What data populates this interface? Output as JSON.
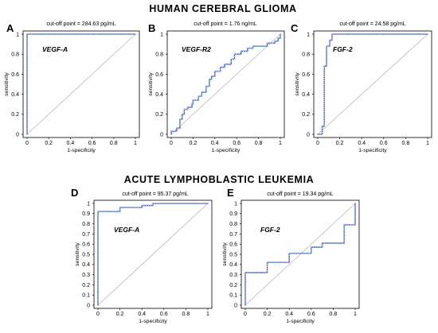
{
  "sections": {
    "top": "HUMAN CEREBRAL GLIOMA",
    "bottom": "ACUTE LYMPHOBLASTIC LEUKEMIA"
  },
  "chart_data": [
    {
      "id": "A",
      "panel_label": "A",
      "type": "line",
      "title": "cut-off point = 284.63 pg/mL",
      "series_label": "VEGF-A",
      "xlabel": "1-specificity",
      "ylabel": "sensitivity",
      "xlim": [
        0,
        1
      ],
      "ylim": [
        0,
        1
      ],
      "x_ticks": [
        "0",
        "0.2",
        "0.4",
        "0.6",
        "0.8",
        "1"
      ],
      "y_ticks": [
        "0",
        "0.2",
        "0.4",
        "0.6",
        "0.8",
        "1"
      ],
      "diagonal": true,
      "points": [
        [
          0,
          0
        ],
        [
          0,
          1
        ],
        [
          1,
          1
        ]
      ]
    },
    {
      "id": "B",
      "panel_label": "B",
      "type": "line",
      "title": "cut-off point = 1.76 ng/mL",
      "series_label": "VEGF-R2",
      "xlabel": "1-specificity",
      "ylabel": "sensitivity",
      "xlim": [
        0,
        1
      ],
      "ylim": [
        0,
        1
      ],
      "x_ticks": [
        "0",
        "0.2",
        "0.4",
        "0.6",
        "0.8",
        "1"
      ],
      "y_ticks": [
        "0",
        "0.2",
        "0.4",
        "0.6",
        "0.8",
        "1"
      ],
      "diagonal": true,
      "points": [
        [
          0,
          0
        ],
        [
          0,
          0.03
        ],
        [
          0.05,
          0.03
        ],
        [
          0.05,
          0.06
        ],
        [
          0.08,
          0.06
        ],
        [
          0.08,
          0.15
        ],
        [
          0.1,
          0.15
        ],
        [
          0.1,
          0.2
        ],
        [
          0.12,
          0.2
        ],
        [
          0.12,
          0.25
        ],
        [
          0.15,
          0.25
        ],
        [
          0.15,
          0.27
        ],
        [
          0.19,
          0.27
        ],
        [
          0.19,
          0.3
        ],
        [
          0.2,
          0.3
        ],
        [
          0.2,
          0.34
        ],
        [
          0.25,
          0.34
        ],
        [
          0.25,
          0.38
        ],
        [
          0.28,
          0.38
        ],
        [
          0.28,
          0.42
        ],
        [
          0.32,
          0.42
        ],
        [
          0.32,
          0.48
        ],
        [
          0.35,
          0.48
        ],
        [
          0.35,
          0.55
        ],
        [
          0.37,
          0.55
        ],
        [
          0.37,
          0.58
        ],
        [
          0.4,
          0.58
        ],
        [
          0.4,
          0.63
        ],
        [
          0.45,
          0.63
        ],
        [
          0.45,
          0.67
        ],
        [
          0.49,
          0.67
        ],
        [
          0.49,
          0.7
        ],
        [
          0.55,
          0.7
        ],
        [
          0.55,
          0.75
        ],
        [
          0.58,
          0.75
        ],
        [
          0.58,
          0.8
        ],
        [
          0.64,
          0.8
        ],
        [
          0.64,
          0.83
        ],
        [
          0.7,
          0.83
        ],
        [
          0.7,
          0.86
        ],
        [
          0.75,
          0.86
        ],
        [
          0.75,
          0.88
        ],
        [
          0.88,
          0.88
        ],
        [
          0.88,
          0.91
        ],
        [
          0.95,
          0.91
        ],
        [
          0.95,
          0.93
        ],
        [
          0.98,
          0.93
        ],
        [
          0.98,
          0.96
        ],
        [
          1,
          0.96
        ],
        [
          1,
          1
        ]
      ]
    },
    {
      "id": "C",
      "panel_label": "C",
      "type": "line",
      "title": "cut-off point = 24.58 pg/mL",
      "series_label": "FGF-2",
      "xlabel": "1-specificity",
      "ylabel": "sensitivity",
      "xlim": [
        0,
        1
      ],
      "ylim": [
        0,
        1
      ],
      "x_ticks": [
        "0",
        "0.2",
        "0.4",
        "0.6",
        "0.8",
        "1"
      ],
      "y_ticks": [
        "0",
        "0.2",
        "0.4",
        "0.6",
        "0.8",
        "1"
      ],
      "diagonal": true,
      "points": [
        [
          0,
          0
        ],
        [
          0.04,
          0
        ],
        [
          0.04,
          0.08
        ],
        [
          0.06,
          0.08
        ],
        [
          0.06,
          0.68
        ],
        [
          0.08,
          0.68
        ],
        [
          0.08,
          0.88
        ],
        [
          0.11,
          0.88
        ],
        [
          0.11,
          0.94
        ],
        [
          0.13,
          0.94
        ],
        [
          0.13,
          1
        ],
        [
          1,
          1
        ]
      ]
    },
    {
      "id": "D",
      "panel_label": "D",
      "type": "line",
      "title": "cut-off point = 95.37 pg/mL",
      "series_label": "VEGF-A",
      "xlabel": "1-specificity",
      "ylabel": "sensitivity",
      "xlim": [
        0,
        1
      ],
      "ylim": [
        0,
        1
      ],
      "x_ticks": [
        "0",
        "0.2",
        "0.4",
        "0.6",
        "0.8",
        "1"
      ],
      "y_ticks": [
        "0",
        "0.1",
        "0.2",
        "0.3",
        "0.4",
        "0.5",
        "0.6",
        "0.7",
        "0.8",
        "0.9",
        "1"
      ],
      "diagonal": true,
      "points": [
        [
          0,
          0
        ],
        [
          0,
          0.92
        ],
        [
          0.2,
          0.92
        ],
        [
          0.2,
          0.96
        ],
        [
          0.4,
          0.96
        ],
        [
          0.4,
          0.98
        ],
        [
          0.5,
          0.98
        ],
        [
          0.5,
          1
        ],
        [
          1,
          1
        ]
      ]
    },
    {
      "id": "E",
      "panel_label": "E",
      "type": "line",
      "title": "cut-off point = 19.34 pg/mL",
      "series_label": "FGF-2",
      "xlabel": "1-specificity",
      "ylabel": "sensitivity",
      "xlim": [
        0,
        1
      ],
      "ylim": [
        0,
        1
      ],
      "x_ticks": [
        "0",
        "0.2",
        "0.4",
        "0.6",
        "0.8",
        "1"
      ],
      "y_ticks": [
        "0",
        "0.1",
        "0.2",
        "0.3",
        "0.4",
        "0.5",
        "0.6",
        "0.7",
        "0.8",
        "0.9",
        "1"
      ],
      "diagonal": true,
      "points": [
        [
          0,
          0
        ],
        [
          0,
          0.32
        ],
        [
          0.2,
          0.32
        ],
        [
          0.2,
          0.42
        ],
        [
          0.4,
          0.42
        ],
        [
          0.4,
          0.51
        ],
        [
          0.6,
          0.51
        ],
        [
          0.6,
          0.57
        ],
        [
          0.7,
          0.57
        ],
        [
          0.7,
          0.61
        ],
        [
          0.9,
          0.61
        ],
        [
          0.9,
          0.79
        ],
        [
          1,
          0.79
        ],
        [
          1,
          1
        ]
      ]
    }
  ],
  "colors": {
    "curve": "#2f58b8",
    "point_fill": "#ffffff",
    "diagonal": "#b8b8b8",
    "frame": "#000000"
  }
}
